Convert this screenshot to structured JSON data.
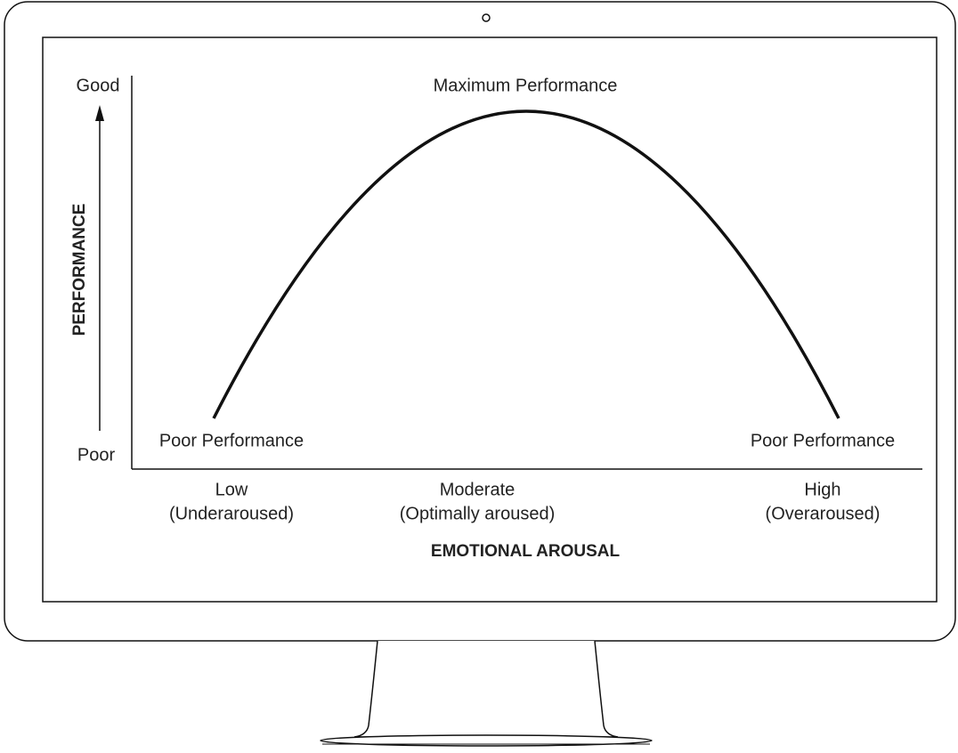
{
  "y_axis": {
    "title": "PERFORMANCE",
    "top_label": "Good",
    "bottom_label": "Poor"
  },
  "x_axis": {
    "title": "EMOTIONAL AROUSAL",
    "labels": [
      {
        "level": "Low",
        "description": "(Underaroused)"
      },
      {
        "level": "Moderate",
        "description": "(Optimally aroused)"
      },
      {
        "level": "High",
        "description": "(Overaroused)"
      }
    ]
  },
  "curve_labels": {
    "peak": "Maximum Performance",
    "left": "Poor Performance",
    "right": "Poor Performance"
  }
}
